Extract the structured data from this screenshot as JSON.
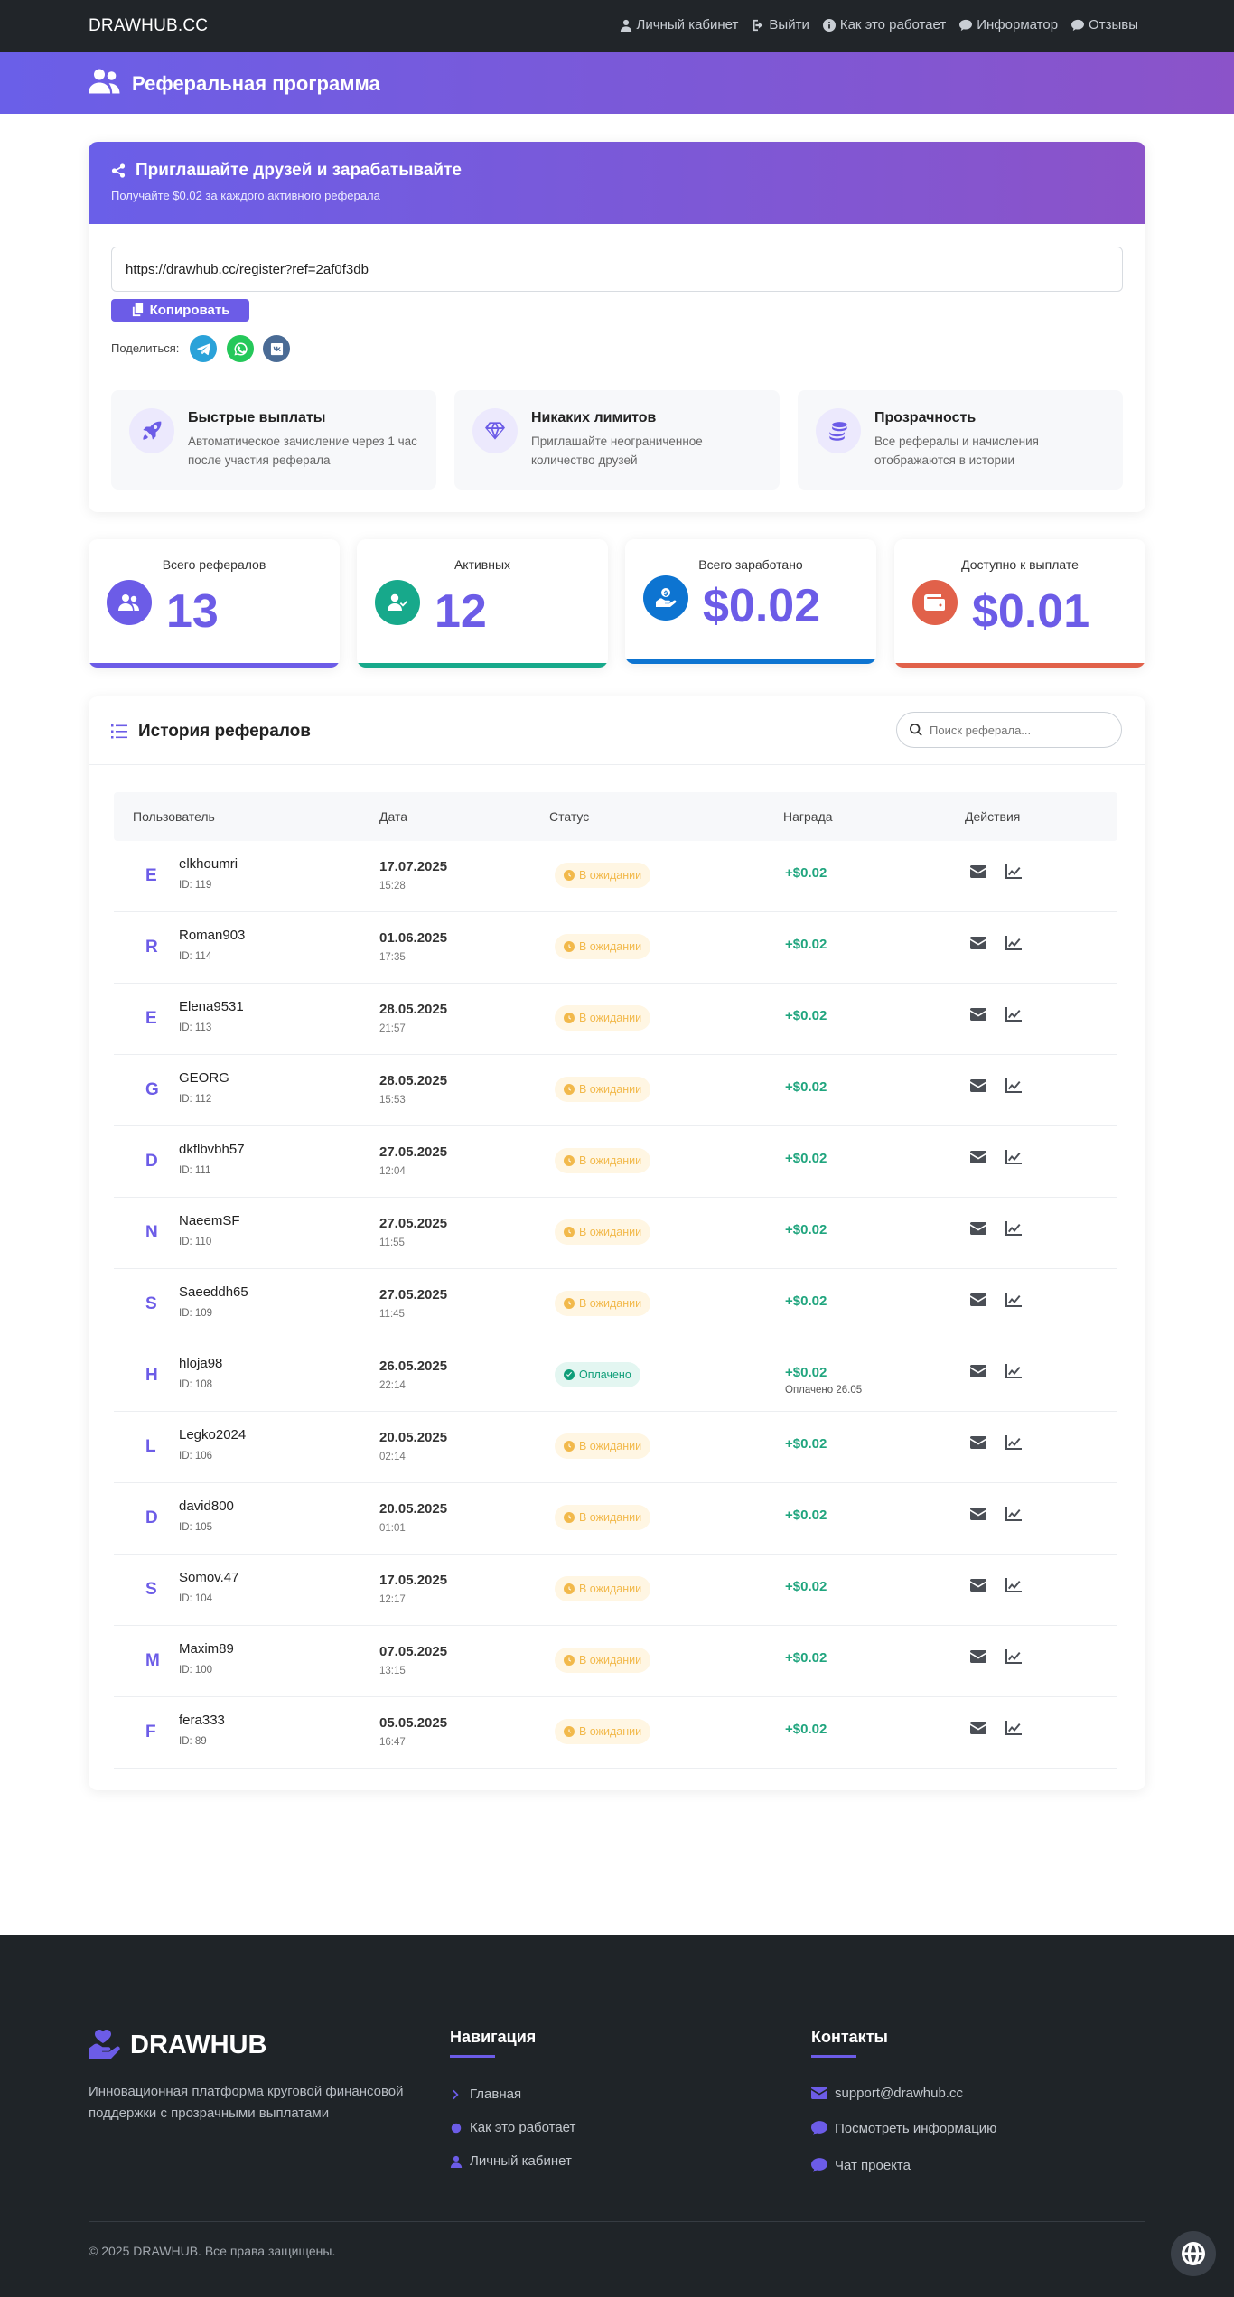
{
  "navbar": {
    "brand": "DRAWHUB.CC",
    "links": [
      {
        "label": "Личный кабинет",
        "icon": "user-icon"
      },
      {
        "label": "Выйти",
        "icon": "sign-out-icon"
      },
      {
        "label": "Как это работает",
        "icon": "info-circle-icon"
      },
      {
        "label": "Информатор",
        "icon": "comment-icon"
      },
      {
        "label": "Отзывы",
        "icon": "comments-icon"
      }
    ]
  },
  "hero": {
    "title": "Реферальная программа",
    "icon": "users-icon"
  },
  "referral": {
    "title": "Приглашайте друзей и зарабатывайте",
    "subtitle": "Получайте $0.02 за каждого активного реферала",
    "link": "https://drawhub.cc/register?ref=2af0f3db",
    "copy_label": "Копировать",
    "share_label": "Поделиться:",
    "share_buttons": [
      {
        "name": "telegram",
        "color": "#2aa2d9"
      },
      {
        "name": "whatsapp",
        "color": "#25c85a"
      },
      {
        "name": "vk",
        "color": "#4a6b95"
      }
    ],
    "features": [
      {
        "title": "Быстрые выплаты",
        "desc": "Автоматическое зачисление через 1 час после участия реферала",
        "icon": "rocket-icon"
      },
      {
        "title": "Никаких лимитов",
        "desc": "Приглашайте неограниченное количество друзей",
        "icon": "gem-icon"
      },
      {
        "title": "Прозрачность",
        "desc": "Все рефералы и начисления отображаются в истории",
        "icon": "coins-icon"
      }
    ]
  },
  "stats": [
    {
      "label": "Всего рефералов",
      "value": "13",
      "icon": "users-icon",
      "color": "#6c5ce7"
    },
    {
      "label": "Активных",
      "value": "12",
      "icon": "user-check-icon",
      "color": "#17a98b"
    },
    {
      "label": "Всего заработано",
      "value": "$0.02",
      "icon": "hand-dollar-icon",
      "color": "#0d74d1"
    },
    {
      "label": "Доступно к выплате",
      "value": "$0.01",
      "icon": "wallet-icon",
      "color": "#e1614a"
    }
  ],
  "history": {
    "title": "История рефералов",
    "search_placeholder": "Поиск реферала...",
    "columns": [
      "Пользователь",
      "Дата",
      "Статус",
      "Награда",
      "Действия"
    ],
    "rows": [
      {
        "initial": "E",
        "name": "elkhoumri",
        "id": "ID: 119",
        "date": "17.07.2025",
        "time": "15:28",
        "status": "В ожидании",
        "paid": false,
        "reward": "+$0.02",
        "note": ""
      },
      {
        "initial": "R",
        "name": "Roman903",
        "id": "ID: 114",
        "date": "01.06.2025",
        "time": "17:35",
        "status": "В ожидании",
        "paid": false,
        "reward": "+$0.02",
        "note": ""
      },
      {
        "initial": "E",
        "name": "Elena9531",
        "id": "ID: 113",
        "date": "28.05.2025",
        "time": "21:57",
        "status": "В ожидании",
        "paid": false,
        "reward": "+$0.02",
        "note": ""
      },
      {
        "initial": "G",
        "name": "GEORG",
        "id": "ID: 112",
        "date": "28.05.2025",
        "time": "15:53",
        "status": "В ожидании",
        "paid": false,
        "reward": "+$0.02",
        "note": ""
      },
      {
        "initial": "D",
        "name": "dkflbvbh57",
        "id": "ID: 111",
        "date": "27.05.2025",
        "time": "12:04",
        "status": "В ожидании",
        "paid": false,
        "reward": "+$0.02",
        "note": ""
      },
      {
        "initial": "N",
        "name": "NaeemSF",
        "id": "ID: 110",
        "date": "27.05.2025",
        "time": "11:55",
        "status": "В ожидании",
        "paid": false,
        "reward": "+$0.02",
        "note": ""
      },
      {
        "initial": "S",
        "name": "Saeeddh65",
        "id": "ID: 109",
        "date": "27.05.2025",
        "time": "11:45",
        "status": "В ожидании",
        "paid": false,
        "reward": "+$0.02",
        "note": ""
      },
      {
        "initial": "H",
        "name": "hloja98",
        "id": "ID: 108",
        "date": "26.05.2025",
        "time": "22:14",
        "status": "Оплачено",
        "paid": true,
        "reward": "+$0.02",
        "note": "Оплачено 26.05"
      },
      {
        "initial": "L",
        "name": "Legko2024",
        "id": "ID: 106",
        "date": "20.05.2025",
        "time": "02:14",
        "status": "В ожидании",
        "paid": false,
        "reward": "+$0.02",
        "note": ""
      },
      {
        "initial": "D",
        "name": "david800",
        "id": "ID: 105",
        "date": "20.05.2025",
        "time": "01:01",
        "status": "В ожидании",
        "paid": false,
        "reward": "+$0.02",
        "note": ""
      },
      {
        "initial": "S",
        "name": "Somov.47",
        "id": "ID: 104",
        "date": "17.05.2025",
        "time": "12:17",
        "status": "В ожидании",
        "paid": false,
        "reward": "+$0.02",
        "note": ""
      },
      {
        "initial": "M",
        "name": "Maxim89",
        "id": "ID: 100",
        "date": "07.05.2025",
        "time": "13:15",
        "status": "В ожидании",
        "paid": false,
        "reward": "+$0.02",
        "note": ""
      },
      {
        "initial": "F",
        "name": "fera333",
        "id": "ID: 89",
        "date": "05.05.2025",
        "time": "16:47",
        "status": "В ожидании",
        "paid": false,
        "reward": "+$0.02",
        "note": ""
      }
    ]
  },
  "footer": {
    "logo": "DRAWHUB",
    "description": "Инновационная платформа круговой финансовой поддержки с прозрачными выплатами",
    "nav_title": "Навигация",
    "nav_items": [
      {
        "label": "Главная",
        "icon": "chevron-right-icon"
      },
      {
        "label": "Как это работает",
        "icon": "circle-icon"
      },
      {
        "label": "Личный кабинет",
        "icon": "user-icon"
      }
    ],
    "contacts_title": "Контакты",
    "contacts": [
      {
        "label": "support@drawhub.cc",
        "icon": "envelope-icon"
      },
      {
        "label": "Посмотреть информацию",
        "icon": "comment-icon"
      },
      {
        "label": "Чат проекта",
        "icon": "comment-icon"
      }
    ],
    "copyright": "© 2025 DRAWHUB. Все права защищены."
  },
  "colors": {
    "accent": "#6c5ce7",
    "success": "#20a57e",
    "pending_bg": "#fff6e3",
    "pending_text": "#f2b94b",
    "paid_bg": "#e3f6f1",
    "paid_text": "#0f9e79"
  }
}
